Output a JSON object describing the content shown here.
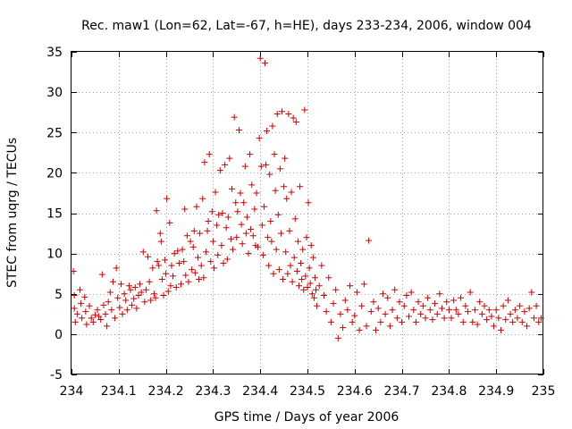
{
  "chart_data": {
    "type": "scatter",
    "title": "Rec. maw1 (Lon=62, Lat=-67, h=HE), days 233-234, 2006, window 004",
    "xlabel": "GPS time / Days of year 2006",
    "ylabel": "STEC from uqrg / TECUs",
    "xlim": [
      234,
      235
    ],
    "ylim": [
      -5,
      35
    ],
    "x_ticks": [
      "234",
      "234.1",
      "234.2",
      "234.3",
      "234.4",
      "234.5",
      "234.6",
      "234.7",
      "234.8",
      "234.9",
      "235"
    ],
    "y_ticks": [
      "-5",
      "0",
      "5",
      "10",
      "15",
      "20",
      "25",
      "30",
      "35"
    ],
    "grid": true,
    "marker": "plus",
    "color": "#cc0000",
    "series": [
      {
        "points": [
          [
            234.004,
            7.8
          ],
          [
            234.006,
            4.8
          ],
          [
            234.006,
            3.2
          ],
          [
            234.008,
            1.5
          ],
          [
            234.012,
            2.5
          ],
          [
            234.018,
            5.5
          ],
          [
            234.02,
            3.8
          ],
          [
            234.022,
            2.0
          ],
          [
            234.028,
            4.6
          ],
          [
            234.03,
            2.8
          ],
          [
            234.032,
            1.2
          ],
          [
            234.038,
            3.5
          ],
          [
            234.042,
            2.0
          ],
          [
            234.046,
            1.5
          ],
          [
            234.05,
            2.4
          ],
          [
            234.055,
            3.0
          ],
          [
            234.058,
            2.2
          ],
          [
            234.062,
            1.8
          ],
          [
            234.065,
            7.4
          ],
          [
            234.068,
            3.6
          ],
          [
            234.072,
            2.5
          ],
          [
            234.075,
            1.0
          ],
          [
            234.078,
            4.0
          ],
          [
            234.082,
            5.2
          ],
          [
            234.085,
            3.0
          ],
          [
            234.088,
            6.5
          ],
          [
            234.092,
            2.0
          ],
          [
            234.095,
            8.2
          ],
          [
            234.098,
            4.5
          ],
          [
            234.102,
            3.3
          ],
          [
            234.105,
            6.2
          ],
          [
            234.108,
            2.5
          ],
          [
            234.112,
            5.0
          ],
          [
            234.115,
            4.2
          ],
          [
            234.118,
            3.0
          ],
          [
            234.122,
            6.0
          ],
          [
            234.125,
            5.5
          ],
          [
            234.128,
            3.6
          ],
          [
            234.132,
            4.4
          ],
          [
            234.135,
            5.8
          ],
          [
            234.138,
            3.2
          ],
          [
            234.142,
            4.8
          ],
          [
            234.145,
            6.2
          ],
          [
            234.148,
            5.2
          ],
          [
            234.152,
            10.2
          ],
          [
            234.155,
            4.0
          ],
          [
            234.158,
            5.5
          ],
          [
            234.162,
            9.6
          ],
          [
            234.165,
            6.5
          ],
          [
            234.168,
            4.2
          ],
          [
            234.172,
            8.2
          ],
          [
            234.175,
            5.0
          ],
          [
            234.178,
            4.5
          ],
          [
            234.18,
            15.3
          ],
          [
            234.182,
            9.0
          ],
          [
            234.185,
            8.5
          ],
          [
            234.188,
            12.5
          ],
          [
            234.19,
            11.5
          ],
          [
            234.192,
            6.8
          ],
          [
            234.195,
            4.8
          ],
          [
            234.198,
            9.2
          ],
          [
            234.2,
            7.5
          ],
          [
            234.202,
            16.8
          ],
          [
            234.205,
            5.3
          ],
          [
            234.208,
            13.8
          ],
          [
            234.21,
            6.0
          ],
          [
            234.212,
            8.5
          ],
          [
            234.215,
            7.2
          ],
          [
            234.218,
            10.0
          ],
          [
            234.222,
            5.8
          ],
          [
            234.225,
            10.3
          ],
          [
            234.228,
            8.8
          ],
          [
            234.232,
            6.2
          ],
          [
            234.235,
            10.5
          ],
          [
            234.238,
            9.0
          ],
          [
            234.24,
            15.5
          ],
          [
            234.242,
            7.3
          ],
          [
            234.245,
            12.2
          ],
          [
            234.248,
            6.5
          ],
          [
            234.252,
            11.5
          ],
          [
            234.255,
            8.0
          ],
          [
            234.258,
            10.8
          ],
          [
            234.26,
            12.8
          ],
          [
            234.262,
            7.6
          ],
          [
            234.265,
            15.8
          ],
          [
            234.268,
            9.5
          ],
          [
            234.27,
            6.8
          ],
          [
            234.272,
            12.5
          ],
          [
            234.275,
            8.5
          ],
          [
            234.278,
            16.8
          ],
          [
            234.28,
            7.0
          ],
          [
            234.282,
            21.3
          ],
          [
            234.285,
            10.2
          ],
          [
            234.288,
            12.8
          ],
          [
            234.29,
            14.0
          ],
          [
            234.292,
            22.3
          ],
          [
            234.295,
            9.0
          ],
          [
            234.298,
            15.2
          ],
          [
            234.3,
            11.5
          ],
          [
            234.302,
            8.2
          ],
          [
            234.305,
            17.6
          ],
          [
            234.308,
            13.5
          ],
          [
            234.31,
            9.8
          ],
          [
            234.312,
            14.8
          ],
          [
            234.315,
            20.3
          ],
          [
            234.318,
            11.0
          ],
          [
            234.32,
            15.0
          ],
          [
            234.322,
            8.8
          ],
          [
            234.325,
            21.0
          ],
          [
            234.328,
            13.2
          ],
          [
            234.33,
            9.3
          ],
          [
            234.332,
            14.5
          ],
          [
            234.335,
            21.8
          ],
          [
            234.338,
            11.8
          ],
          [
            234.34,
            18.0
          ],
          [
            234.342,
            10.5
          ],
          [
            234.345,
            26.9
          ],
          [
            234.348,
            16.3
          ],
          [
            234.35,
            12.0
          ],
          [
            234.352,
            15.2
          ],
          [
            234.355,
            25.3
          ],
          [
            234.358,
            17.5
          ],
          [
            234.36,
            13.6
          ],
          [
            234.362,
            11.2
          ],
          [
            234.365,
            16.3
          ],
          [
            234.368,
            20.8
          ],
          [
            234.37,
            12.5
          ],
          [
            234.372,
            14.5
          ],
          [
            234.375,
            10.0
          ],
          [
            234.378,
            22.3
          ],
          [
            234.38,
            13.0
          ],
          [
            234.382,
            18.5
          ],
          [
            234.385,
            12.2
          ],
          [
            234.388,
            15.5
          ],
          [
            234.39,
            11.0
          ],
          [
            234.392,
            17.5
          ],
          [
            234.395,
            10.8
          ],
          [
            234.398,
            24.3
          ],
          [
            234.4,
            34.2
          ],
          [
            234.402,
            20.8
          ],
          [
            234.404,
            13.5
          ],
          [
            234.406,
            9.8
          ],
          [
            234.408,
            15.8
          ],
          [
            234.41,
            33.6
          ],
          [
            234.412,
            21.0
          ],
          [
            234.414,
            25.2
          ],
          [
            234.416,
            12.0
          ],
          [
            234.418,
            8.5
          ],
          [
            234.42,
            19.8
          ],
          [
            234.422,
            14.0
          ],
          [
            234.424,
            11.5
          ],
          [
            234.426,
            25.8
          ],
          [
            234.428,
            7.5
          ],
          [
            234.43,
            22.3
          ],
          [
            234.432,
            17.8
          ],
          [
            234.434,
            10.5
          ],
          [
            234.436,
            27.3
          ],
          [
            234.438,
            14.8
          ],
          [
            234.44,
            8.0
          ],
          [
            234.442,
            20.5
          ],
          [
            234.444,
            12.5
          ],
          [
            234.446,
            27.6
          ],
          [
            234.448,
            6.8
          ],
          [
            234.45,
            18.3
          ],
          [
            234.452,
            21.8
          ],
          [
            234.454,
            10.2
          ],
          [
            234.456,
            16.8
          ],
          [
            234.458,
            7.5
          ],
          [
            234.46,
            27.3
          ],
          [
            234.462,
            12.8
          ],
          [
            234.464,
            8.5
          ],
          [
            234.466,
            17.6
          ],
          [
            234.468,
            6.5
          ],
          [
            234.47,
            26.8
          ],
          [
            234.472,
            9.5
          ],
          [
            234.474,
            14.3
          ],
          [
            234.476,
            26.3
          ],
          [
            234.478,
            7.8
          ],
          [
            234.48,
            11.5
          ],
          [
            234.482,
            6.0
          ],
          [
            234.484,
            18.3
          ],
          [
            234.486,
            8.8
          ],
          [
            234.488,
            6.8
          ],
          [
            234.49,
            10.5
          ],
          [
            234.492,
            5.5
          ],
          [
            234.494,
            27.8
          ],
          [
            234.496,
            7.2
          ],
          [
            234.498,
            12.0
          ],
          [
            234.5,
            5.8
          ],
          [
            234.502,
            16.3
          ],
          [
            234.504,
            8.2
          ],
          [
            234.506,
            6.3
          ],
          [
            234.508,
            11.0
          ],
          [
            234.51,
            5.0
          ],
          [
            234.512,
            9.5
          ],
          [
            234.514,
            4.5
          ],
          [
            234.516,
            7.0
          ],
          [
            234.518,
            5.5
          ],
          [
            234.52,
            3.5
          ],
          [
            234.525,
            6.0
          ],
          [
            234.53,
            8.5
          ],
          [
            234.535,
            4.8
          ],
          [
            234.54,
            2.8
          ],
          [
            234.545,
            7.0
          ],
          [
            234.55,
            1.5
          ],
          [
            234.555,
            3.8
          ],
          [
            234.56,
            5.5
          ],
          [
            234.565,
            -0.5
          ],
          [
            234.57,
            2.5
          ],
          [
            234.575,
            0.8
          ],
          [
            234.58,
            4.2
          ],
          [
            234.585,
            3.0
          ],
          [
            234.59,
            6.0
          ],
          [
            234.595,
            1.5
          ],
          [
            234.6,
            2.3
          ],
          [
            234.605,
            5.2
          ],
          [
            234.61,
            0.5
          ],
          [
            234.615,
            3.5
          ],
          [
            234.62,
            6.2
          ],
          [
            234.625,
            1.0
          ],
          [
            234.63,
            11.6
          ],
          [
            234.635,
            2.8
          ],
          [
            234.64,
            4.0
          ],
          [
            234.645,
            0.5
          ],
          [
            234.65,
            3.2
          ],
          [
            234.655,
            1.5
          ],
          [
            234.66,
            5.0
          ],
          [
            234.665,
            2.5
          ],
          [
            234.67,
            4.5
          ],
          [
            234.675,
            1.0
          ],
          [
            234.68,
            3.0
          ],
          [
            234.685,
            5.5
          ],
          [
            234.69,
            2.0
          ],
          [
            234.695,
            4.0
          ],
          [
            234.7,
            1.5
          ],
          [
            234.705,
            3.5
          ],
          [
            234.71,
            4.8
          ],
          [
            234.715,
            2.2
          ],
          [
            234.72,
            5.2
          ],
          [
            234.725,
            3.0
          ],
          [
            234.73,
            1.5
          ],
          [
            234.735,
            4.0
          ],
          [
            234.74,
            2.5
          ],
          [
            234.745,
            3.5
          ],
          [
            234.75,
            2.0
          ],
          [
            234.755,
            4.5
          ],
          [
            234.76,
            3.0
          ],
          [
            234.765,
            1.8
          ],
          [
            234.77,
            3.8
          ],
          [
            234.775,
            2.5
          ],
          [
            234.78,
            5.0
          ],
          [
            234.785,
            3.2
          ],
          [
            234.79,
            2.0
          ],
          [
            234.795,
            4.0
          ],
          [
            234.8,
            3.0
          ],
          [
            234.805,
            2.0
          ],
          [
            234.81,
            4.2
          ],
          [
            234.815,
            3.0
          ],
          [
            234.82,
            2.5
          ],
          [
            234.825,
            4.5
          ],
          [
            234.83,
            1.5
          ],
          [
            234.835,
            3.5
          ],
          [
            234.84,
            2.8
          ],
          [
            234.845,
            5.2
          ],
          [
            234.85,
            1.5
          ],
          [
            234.855,
            3.0
          ],
          [
            234.86,
            1.2
          ],
          [
            234.865,
            4.0
          ],
          [
            234.87,
            2.5
          ],
          [
            234.875,
            3.5
          ],
          [
            234.88,
            1.8
          ],
          [
            234.885,
            3.0
          ],
          [
            234.89,
            2.2
          ],
          [
            234.895,
            1.0
          ],
          [
            234.9,
            3.0
          ],
          [
            234.905,
            2.0
          ],
          [
            234.91,
            0.5
          ],
          [
            234.915,
            3.5
          ],
          [
            234.92,
            1.8
          ],
          [
            234.925,
            4.2
          ],
          [
            234.93,
            2.5
          ],
          [
            234.935,
            1.5
          ],
          [
            234.94,
            3.0
          ],
          [
            234.945,
            2.0
          ],
          [
            234.95,
            3.5
          ],
          [
            234.955,
            1.5
          ],
          [
            234.96,
            2.8
          ],
          [
            234.965,
            1.0
          ],
          [
            234.97,
            3.2
          ],
          [
            234.975,
            5.2
          ],
          [
            234.98,
            2.0
          ],
          [
            234.985,
            3.5
          ],
          [
            234.99,
            1.5
          ],
          [
            234.995,
            2.0
          ]
        ]
      }
    ]
  }
}
